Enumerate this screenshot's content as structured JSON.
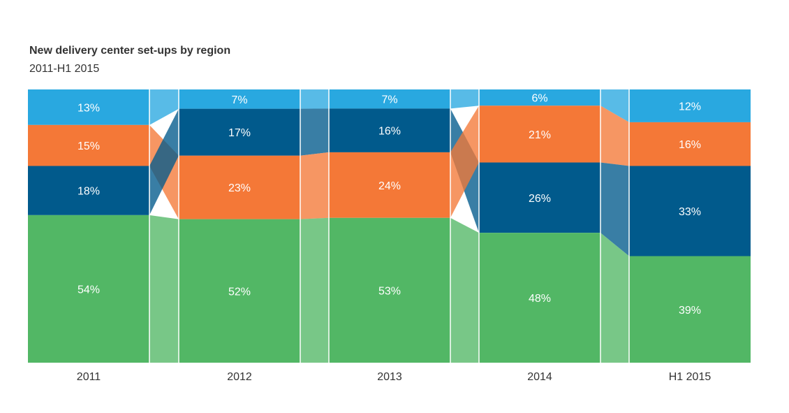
{
  "title": "New delivery center set-ups by region",
  "subtitle": "2011-H1 2015",
  "chart_data": {
    "type": "bar",
    "stacked": true,
    "normalized": true,
    "title": "New delivery center set-ups by region",
    "subtitle": "2011-H1 2015",
    "categories": [
      "2011",
      "2012",
      "2013",
      "2014",
      "H1 2015"
    ],
    "ylim": [
      0,
      100
    ],
    "grid": false,
    "series_colors": [
      "#52b765",
      "#015a8c",
      "#f47837",
      "#29a8e0"
    ],
    "segments": [
      [
        {
          "value": 13,
          "label": "13%",
          "color": "#29a8e0"
        },
        {
          "value": 15,
          "label": "15%",
          "color": "#f47837"
        },
        {
          "value": 18,
          "label": "18%",
          "color": "#015a8c"
        },
        {
          "value": 54,
          "label": "54%",
          "color": "#52b765"
        }
      ],
      [
        {
          "value": 7,
          "label": "7%",
          "color": "#29a8e0"
        },
        {
          "value": 17,
          "label": "17%",
          "color": "#015a8c"
        },
        {
          "value": 23,
          "label": "23%",
          "color": "#f47837"
        },
        {
          "value": 52,
          "label": "52%",
          "color": "#52b765"
        }
      ],
      [
        {
          "value": 7,
          "label": "7%",
          "color": "#29a8e0"
        },
        {
          "value": 16,
          "label": "16%",
          "color": "#015a8c"
        },
        {
          "value": 24,
          "label": "24%",
          "color": "#f47837"
        },
        {
          "value": 53,
          "label": "53%",
          "color": "#52b765"
        }
      ],
      [
        {
          "value": 6,
          "label": "6%",
          "color": "#29a8e0"
        },
        {
          "value": 21,
          "label": "21%",
          "color": "#f47837"
        },
        {
          "value": 26,
          "label": "26%",
          "color": "#015a8c"
        },
        {
          "value": 48,
          "label": "48%",
          "color": "#52b765"
        }
      ],
      [
        {
          "value": 12,
          "label": "12%",
          "color": "#29a8e0"
        },
        {
          "value": 16,
          "label": "16%",
          "color": "#f47837"
        },
        {
          "value": 33,
          "label": "33%",
          "color": "#015a8c"
        },
        {
          "value": 39,
          "label": "39%",
          "color": "#52b765"
        }
      ]
    ]
  }
}
